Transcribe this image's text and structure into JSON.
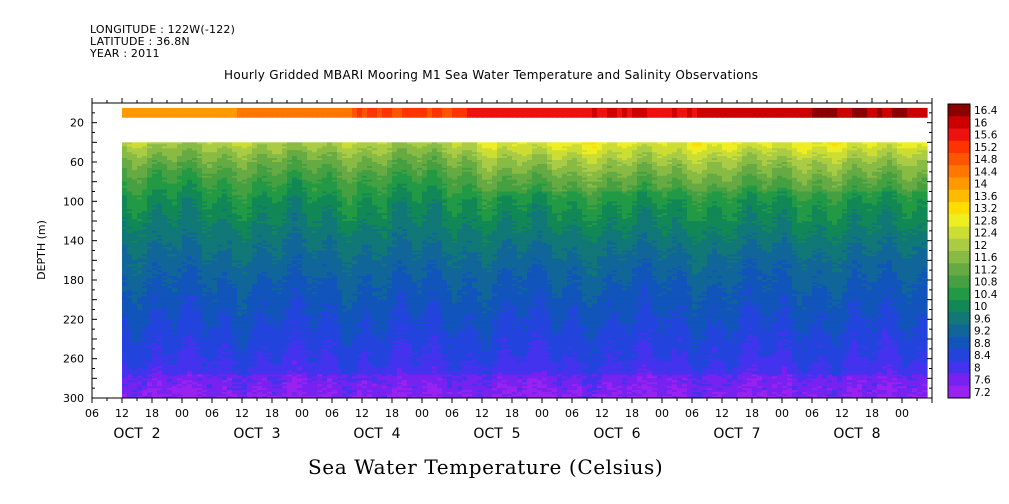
{
  "header": {
    "longitude": "LONGITUDE : 122W(-122)",
    "latitude": "LATITUDE : 36.8N",
    "year": "YEAR : 2011"
  },
  "chart_data": {
    "type": "heatmap",
    "title": "Hourly Gridded MBARI Mooring M1 Sea Water Temperature and Salinity Observations",
    "xlabel": "Sea Water Temperature (Celsius)",
    "ylabel": "DEPTH (m)",
    "x_range_hours": [
      0,
      168
    ],
    "data_start_hour": 6,
    "data_end_hour": 167,
    "ylim": [
      300,
      0
    ],
    "y_ticks": [
      20,
      60,
      100,
      140,
      180,
      220,
      260,
      300
    ],
    "x_hour_labels": [
      "06",
      "12",
      "18",
      "00",
      "06",
      "12",
      "18",
      "00",
      "06",
      "12",
      "18",
      "00",
      "06",
      "12",
      "18",
      "00",
      "06",
      "12",
      "18",
      "00",
      "06",
      "12",
      "18",
      "00",
      "06",
      "12",
      "18",
      "00"
    ],
    "x_day_labels": [
      "OCT  2",
      "OCT  3",
      "OCT  4",
      "OCT  5",
      "OCT  6",
      "OCT  7",
      "OCT  8"
    ],
    "colorbar_levels": [
      "16.4",
      "16",
      "15.6",
      "15.2",
      "14.8",
      "14.4",
      "14",
      "13.6",
      "13.2",
      "12.8",
      "12.4",
      "12",
      "11.6",
      "11.2",
      "10.8",
      "10.4",
      "10",
      "9.6",
      "9.2",
      "8.8",
      "8.4",
      "8",
      "7.6",
      "7.2"
    ],
    "colorbar_colors": [
      "#8b0000",
      "#cc0000",
      "#ee1111",
      "#ff3300",
      "#ff5500",
      "#ff7700",
      "#ff9900",
      "#ffbb00",
      "#ffdd00",
      "#eeee22",
      "#ccdd33",
      "#aacc44",
      "#88bb44",
      "#66aa44",
      "#44a040",
      "#229944",
      "#118855",
      "#117777",
      "#116699",
      "#1155bb",
      "#2244dd",
      "#4433ee",
      "#7722f0",
      "#9922f0"
    ],
    "surface_layer": {
      "depth_range": [
        5,
        15
      ],
      "values": [
        14.0,
        14.4,
        15.0,
        15.6,
        15.8,
        16.0,
        16.2
      ]
    },
    "missing_depth_range": [
      15,
      40
    ],
    "profile": [
      {
        "depth": 40,
        "temperature": 12.0
      },
      {
        "depth": 60,
        "temperature": 11.2
      },
      {
        "depth": 80,
        "temperature": 10.6
      },
      {
        "depth": 100,
        "temperature": 10.1
      },
      {
        "depth": 140,
        "temperature": 9.5
      },
      {
        "depth": 180,
        "temperature": 9.0
      },
      {
        "depth": 220,
        "temperature": 8.6
      },
      {
        "depth": 260,
        "temperature": 8.2
      },
      {
        "depth": 300,
        "temperature": 7.6
      }
    ],
    "thermocline_shallowing": {
      "start_hour": 74,
      "end_hour": 168,
      "delta": -0.7
    }
  }
}
